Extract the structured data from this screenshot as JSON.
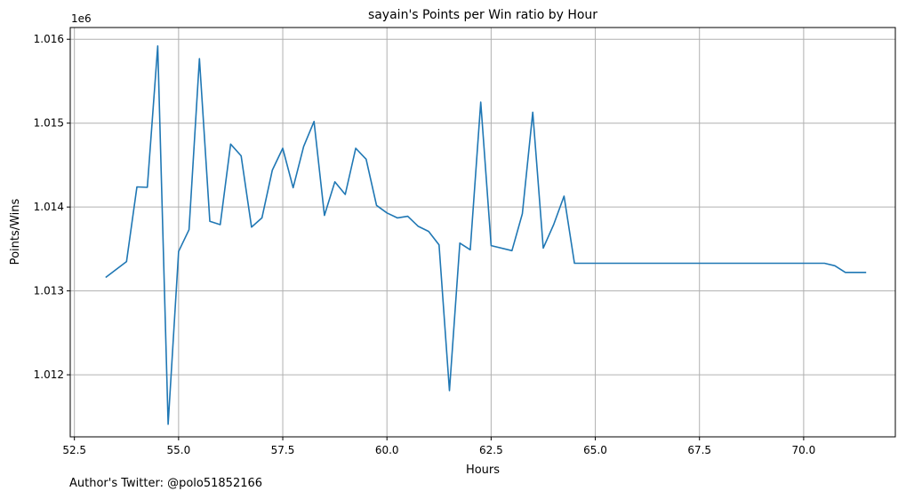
{
  "chart_data": {
    "type": "line",
    "title": "sayain's Points per Win ratio by Hour",
    "xlabel": "Hours",
    "ylabel": "Points/Wins",
    "y_offset_label": "1e6",
    "xlim": [
      52.4,
      72.2
    ],
    "ylim": [
      1011260,
      1016140
    ],
    "grid": true,
    "x_ticks": [
      52.5,
      55.0,
      57.5,
      60.0,
      62.5,
      65.0,
      67.5,
      70.0
    ],
    "x_tick_labels": [
      "52.5",
      "55.0",
      "57.5",
      "60.0",
      "62.5",
      "65.0",
      "67.5",
      "70.0"
    ],
    "y_ticks": [
      1012000,
      1013000,
      1014000,
      1015000,
      1016000
    ],
    "y_tick_labels": [
      "1.012",
      "1.013",
      "1.014",
      "1.015",
      "1.016"
    ],
    "series": [
      {
        "color": "#1f77b4",
        "x": [
          53.25,
          53.75,
          54.0,
          54.25,
          54.5,
          54.75,
          55.0,
          55.25,
          55.5,
          55.75,
          56.0,
          56.25,
          56.5,
          56.75,
          57.0,
          57.25,
          57.5,
          57.75,
          58.0,
          58.25,
          58.5,
          58.75,
          59.0,
          59.25,
          59.5,
          59.75,
          60.0,
          60.25,
          60.5,
          60.75,
          61.0,
          61.25,
          61.5,
          61.75,
          62.0,
          62.25,
          62.5,
          63.0,
          63.25,
          63.5,
          63.75,
          64.0,
          64.25,
          64.5,
          65.0,
          66.0,
          67.0,
          68.0,
          69.0,
          70.0,
          70.5,
          70.75,
          71.0,
          71.5
        ],
        "y": [
          1013160,
          1013350,
          1014240,
          1014235,
          1015920,
          1011410,
          1013470,
          1013730,
          1015770,
          1013830,
          1013790,
          1014750,
          1014610,
          1013760,
          1013870,
          1014440,
          1014700,
          1014230,
          1014720,
          1015020,
          1013900,
          1014300,
          1014150,
          1014700,
          1014570,
          1014020,
          1013930,
          1013870,
          1013890,
          1013770,
          1013710,
          1013550,
          1011810,
          1013570,
          1013490,
          1015250,
          1013540,
          1013480,
          1013920,
          1015130,
          1013510,
          1013790,
          1014130,
          1013330,
          1013330,
          1013330,
          1013330,
          1013330,
          1013330,
          1013330,
          1013330,
          1013300,
          1013220,
          1013220
        ]
      }
    ]
  },
  "footer": {
    "credit": "Author's Twitter: @polo51852166"
  }
}
